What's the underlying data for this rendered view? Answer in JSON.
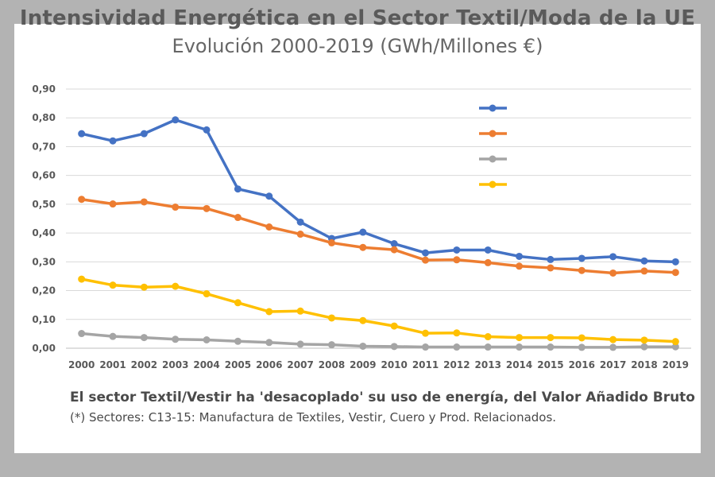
{
  "chart_data": {
    "type": "line",
    "title": "Intensividad Energética en el Sector Textil/Moda de la UE",
    "subtitle": "Evolución 2000-2019 (GWh/Millones €)",
    "xlabel": "",
    "ylabel": "",
    "ylim": [
      0,
      0.9
    ],
    "yticks": [
      "0,00",
      "0,10",
      "0,20",
      "0,30",
      "0,40",
      "0,50",
      "0,60",
      "0,70",
      "0,80",
      "0,90"
    ],
    "categories": [
      "2000",
      "2001",
      "2002",
      "2003",
      "2004",
      "2005",
      "2006",
      "2007",
      "2008",
      "2009",
      "2010",
      "2011",
      "2012",
      "2013",
      "2014",
      "2015",
      "2016",
      "2017",
      "2018",
      "2019"
    ],
    "grid": true,
    "legend_position": "top-right",
    "series": [
      {
        "name": "",
        "color": "#4472c4",
        "values": [
          0.745,
          0.72,
          0.745,
          0.793,
          0.758,
          0.553,
          0.528,
          0.438,
          0.381,
          0.403,
          0.363,
          0.331,
          0.341,
          0.341,
          0.319,
          0.308,
          0.312,
          0.318,
          0.303,
          0.3
        ]
      },
      {
        "name": "",
        "color": "#ed7d31",
        "values": [
          0.517,
          0.501,
          0.508,
          0.49,
          0.485,
          0.454,
          0.421,
          0.396,
          0.366,
          0.35,
          0.342,
          0.306,
          0.307,
          0.297,
          0.285,
          0.279,
          0.27,
          0.261,
          0.268,
          0.263
        ]
      },
      {
        "name": "",
        "color": "#a5a5a5",
        "values": [
          0.051,
          0.041,
          0.037,
          0.031,
          0.029,
          0.024,
          0.02,
          0.014,
          0.012,
          0.007,
          0.006,
          0.004,
          0.004,
          0.004,
          0.004,
          0.004,
          0.003,
          0.003,
          0.005,
          0.005
        ]
      },
      {
        "name": "",
        "color": "#ffc000",
        "values": [
          0.24,
          0.219,
          0.212,
          0.215,
          0.189,
          0.158,
          0.127,
          0.129,
          0.105,
          0.096,
          0.077,
          0.052,
          0.053,
          0.04,
          0.037,
          0.037,
          0.036,
          0.03,
          0.028,
          0.023
        ]
      }
    ]
  },
  "footer": {
    "headline": "El sector Textil/Vestir ha 'desacoplado' su uso de energía, del Valor Añadido Bruto",
    "note": "(*) Sectores: C13-15: Manufactura de Textiles, Vestir, Cuero y Prod. Relacionados."
  }
}
